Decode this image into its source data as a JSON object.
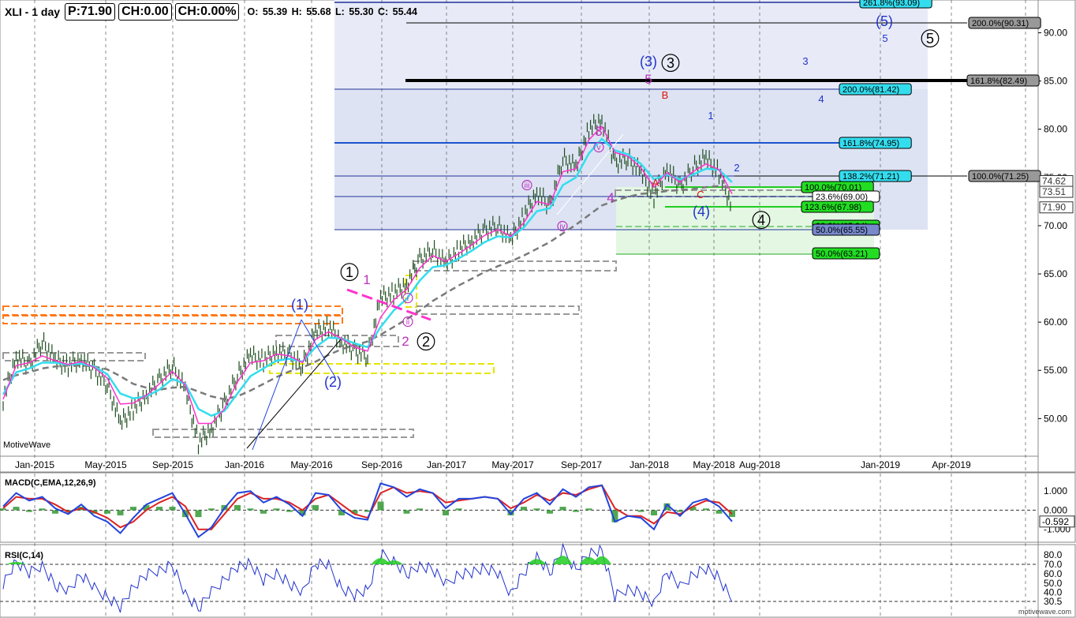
{
  "header": {
    "symbol": "XLI - 1 day",
    "price_box": "P:71.90",
    "change_box": "CH:0.00",
    "change_pct": "CH:0.00%",
    "ohlc": "O: 55.39  H: 55.68  L: 55.30  C: 55.44"
  },
  "branding": {
    "watermark": "MotiveWave",
    "footer": "motivewave.com"
  },
  "panels": {
    "macd_title": "MACD(C,EMA,12,26,9)",
    "rsi_title": "RSI(C,14)"
  },
  "colors": {
    "price_bars": "#1f4d1f",
    "ema_fast": "#ff33cc",
    "ema_mid": "#33ddee",
    "sma_slow": "#7a7a7a",
    "macd": "#2244dd",
    "signal": "#dd2222",
    "histogram": "#339933",
    "rsi": "#2233cc",
    "fib_zone": "#e6eaf6",
    "target_zone": "#dff6df"
  },
  "chart_data": [
    {
      "type": "line",
      "title": "XLI - 1 day",
      "x_tick_labels": [
        "Jan-2015",
        "May-2015",
        "Sep-2015",
        "Jan-2016",
        "May-2016",
        "Sep-2016",
        "Jan-2017",
        "May-2017",
        "Sep-2017",
        "Jan-2018",
        "May-2018",
        "Aug-2018",
        "Jan-2019",
        "Apr-2019"
      ],
      "y_tick_labels": [
        "50.00",
        "55.00",
        "60.00",
        "65.00",
        "70.00",
        "75.00",
        "80.00",
        "85.00",
        "90.00"
      ],
      "ylim": [
        46.1,
        93.4
      ],
      "current_price_labels": [
        "74.62",
        "73.51",
        "71.90"
      ],
      "series": [
        {
          "values": [
            52.0,
            56.5,
            55.5,
            58.0,
            56.0,
            55.5,
            56.2,
            55.0,
            53.5,
            49.5,
            51.0,
            52.5,
            54.0,
            55.5,
            53.0,
            47.5,
            49.0,
            51.5,
            54.5,
            56.5,
            56.0,
            57.0,
            56.5,
            55.5,
            59.0,
            59.5,
            58.0,
            57.0,
            56.5,
            62.5,
            63.0,
            64.0,
            66.5,
            67.5,
            66.0,
            67.5,
            68.5,
            69.5,
            70.0,
            68.5,
            71.0,
            73.5,
            72.0,
            77.0,
            76.0,
            80.0,
            81.0,
            76.5,
            77.0,
            75.5,
            73.0,
            76.0,
            74.0,
            76.0,
            77.0,
            75.5,
            71.9
          ]
        },
        {
          "name": "EMA fast",
          "values": [
            52.0,
            55.5,
            55.8,
            56.5,
            56.0,
            55.6,
            55.9,
            55.3,
            54.2,
            51.5,
            51.6,
            52.4,
            53.6,
            54.9,
            53.5,
            49.5,
            49.5,
            51.0,
            53.8,
            55.8,
            56.0,
            56.7,
            56.5,
            55.8,
            58.2,
            59.0,
            58.3,
            57.4,
            57.0,
            60.5,
            62.3,
            63.4,
            65.6,
            66.9,
            66.3,
            67.1,
            68.0,
            69.0,
            69.6,
            68.9,
            70.3,
            72.5,
            72.2,
            75.6,
            75.9,
            78.9,
            80.3,
            77.6,
            77.2,
            76.0,
            74.0,
            75.5,
            74.5,
            75.6,
            76.4,
            75.8,
            73.3
          ]
        },
        {
          "name": "EMA mid",
          "values": [
            52.5,
            54.8,
            55.2,
            55.8,
            55.8,
            55.6,
            55.7,
            55.4,
            54.6,
            52.6,
            52.1,
            52.3,
            53.0,
            54.1,
            53.6,
            51.0,
            50.3,
            50.8,
            52.6,
            54.4,
            55.2,
            56.0,
            56.2,
            55.9,
            57.4,
            58.4,
            58.3,
            57.8,
            57.4,
            59.5,
            61.2,
            62.4,
            64.3,
            65.7,
            65.9,
            66.6,
            67.4,
            68.3,
            68.9,
            68.8,
            69.8,
            71.5,
            71.8,
            74.2,
            75.0,
            77.5,
            79.0,
            77.8,
            77.4,
            76.4,
            74.8,
            75.3,
            74.8,
            75.3,
            75.9,
            75.8,
            74.5
          ]
        },
        {
          "name": "SMA slow",
          "values": [
            54.0,
            54.5,
            54.8,
            55.2,
            55.4,
            55.5,
            55.5,
            55.4,
            55.1,
            54.4,
            53.6,
            53.2,
            53.0,
            53.2,
            53.3,
            52.8,
            52.3,
            52.0,
            52.3,
            52.9,
            53.6,
            54.3,
            54.9,
            55.3,
            55.9,
            56.6,
            57.2,
            57.6,
            58.0,
            58.7,
            59.5,
            60.3,
            61.2,
            62.2,
            63.0,
            63.8,
            64.5,
            65.2,
            65.8,
            66.3,
            66.9,
            67.6,
            68.3,
            69.2,
            70.1,
            71.1,
            72.1,
            72.6,
            73.0,
            73.3,
            73.4,
            73.6,
            73.7,
            73.8,
            74.0,
            74.1,
            73.9
          ]
        }
      ]
    },
    {
      "type": "line",
      "title": "MACD(C,EMA,12,26,9)",
      "y_tick_labels": [
        "1.000",
        "0.000",
        "-1.000"
      ],
      "value_label": "-0.592",
      "ylim": [
        -1.55,
        1.75
      ],
      "series": [
        {
          "values": [
            0.2,
            0.9,
            0.5,
            0.7,
            0.1,
            -0.2,
            0.3,
            -0.3,
            -0.6,
            -1.2,
            -0.4,
            0.3,
            0.6,
            0.9,
            -0.2,
            -1.4,
            -0.9,
            0.1,
            0.9,
            1.0,
            0.4,
            0.7,
            0.3,
            -0.3,
            0.9,
            0.8,
            0.0,
            -0.4,
            -0.5,
            1.4,
            1.2,
            0.7,
            1.1,
            0.9,
            0.1,
            0.6,
            0.6,
            0.7,
            0.6,
            -0.2,
            0.6,
            0.9,
            0.3,
            1.1,
            0.7,
            1.2,
            1.3,
            -0.6,
            -0.3,
            -0.4,
            -1.0,
            0.3,
            -0.3,
            0.4,
            0.6,
            0.2,
            -0.59
          ]
        },
        {
          "values": [
            0.1,
            0.7,
            0.6,
            0.6,
            0.3,
            -0.1,
            0.1,
            -0.1,
            -0.4,
            -0.9,
            -0.6,
            0.0,
            0.4,
            0.7,
            0.2,
            -1.0,
            -1.0,
            -0.2,
            0.6,
            0.9,
            0.6,
            0.6,
            0.4,
            0.0,
            0.6,
            0.8,
            0.3,
            -0.2,
            -0.4,
            0.9,
            1.2,
            0.9,
            1.0,
            0.9,
            0.4,
            0.5,
            0.6,
            0.7,
            0.6,
            0.1,
            0.4,
            0.8,
            0.5,
            0.9,
            0.8,
            1.1,
            1.3,
            0.1,
            -0.3,
            -0.3,
            -0.7,
            -0.1,
            -0.2,
            0.2,
            0.5,
            0.4,
            -0.2
          ]
        }
      ]
    },
    {
      "type": "line",
      "title": "RSI(C,14)",
      "y_tick_labels": [
        "80.0",
        "70.0",
        "60.0",
        "50.0",
        "40.0",
        "30.5"
      ],
      "ylim": [
        17,
        86
      ],
      "series": [
        {
          "values": [
            50,
            72,
            60,
            70,
            48,
            42,
            58,
            44,
            36,
            25,
            45,
            58,
            65,
            70,
            38,
            22,
            40,
            55,
            68,
            70,
            52,
            62,
            50,
            40,
            70,
            68,
            45,
            38,
            42,
            80,
            75,
            60,
            68,
            64,
            48,
            60,
            62,
            65,
            60,
            40,
            62,
            78,
            60,
            85,
            65,
            82,
            84,
            35,
            45,
            40,
            28,
            62,
            45,
            60,
            66,
            55,
            30
          ]
        }
      ]
    }
  ],
  "annotations": {
    "fib_labels": [
      "261.8%(93.09)",
      "200.0%(90.31)",
      "161.8%(82.49)",
      "200.0%(81.42)",
      "161.8%(74.95)",
      "138.2%(71.21)",
      "100.0%(71.25)",
      "100.0%(70.01)",
      "23.6%(69.00)",
      "123.6%(67.98)",
      "38.2%(65.94)",
      "50.0%(65.55)",
      "50.0%(63.21)"
    ],
    "wave_labels_blue": [
      "(1)",
      "(2)",
      "(3)",
      "(4)",
      "(5)"
    ],
    "wave_labels_circled": [
      "1",
      "2",
      "3",
      "4",
      "5"
    ],
    "wave_labels_magenta": [
      "1",
      "2",
      "3",
      "4",
      "5"
    ],
    "wave_labels_roman": [
      "i",
      "ii",
      "iii",
      "iv",
      "v"
    ],
    "wave_labels_red": [
      "A",
      "B",
      "C"
    ],
    "wave_labels_minor_blue": [
      "1",
      "2",
      "3",
      "4",
      "5"
    ]
  }
}
